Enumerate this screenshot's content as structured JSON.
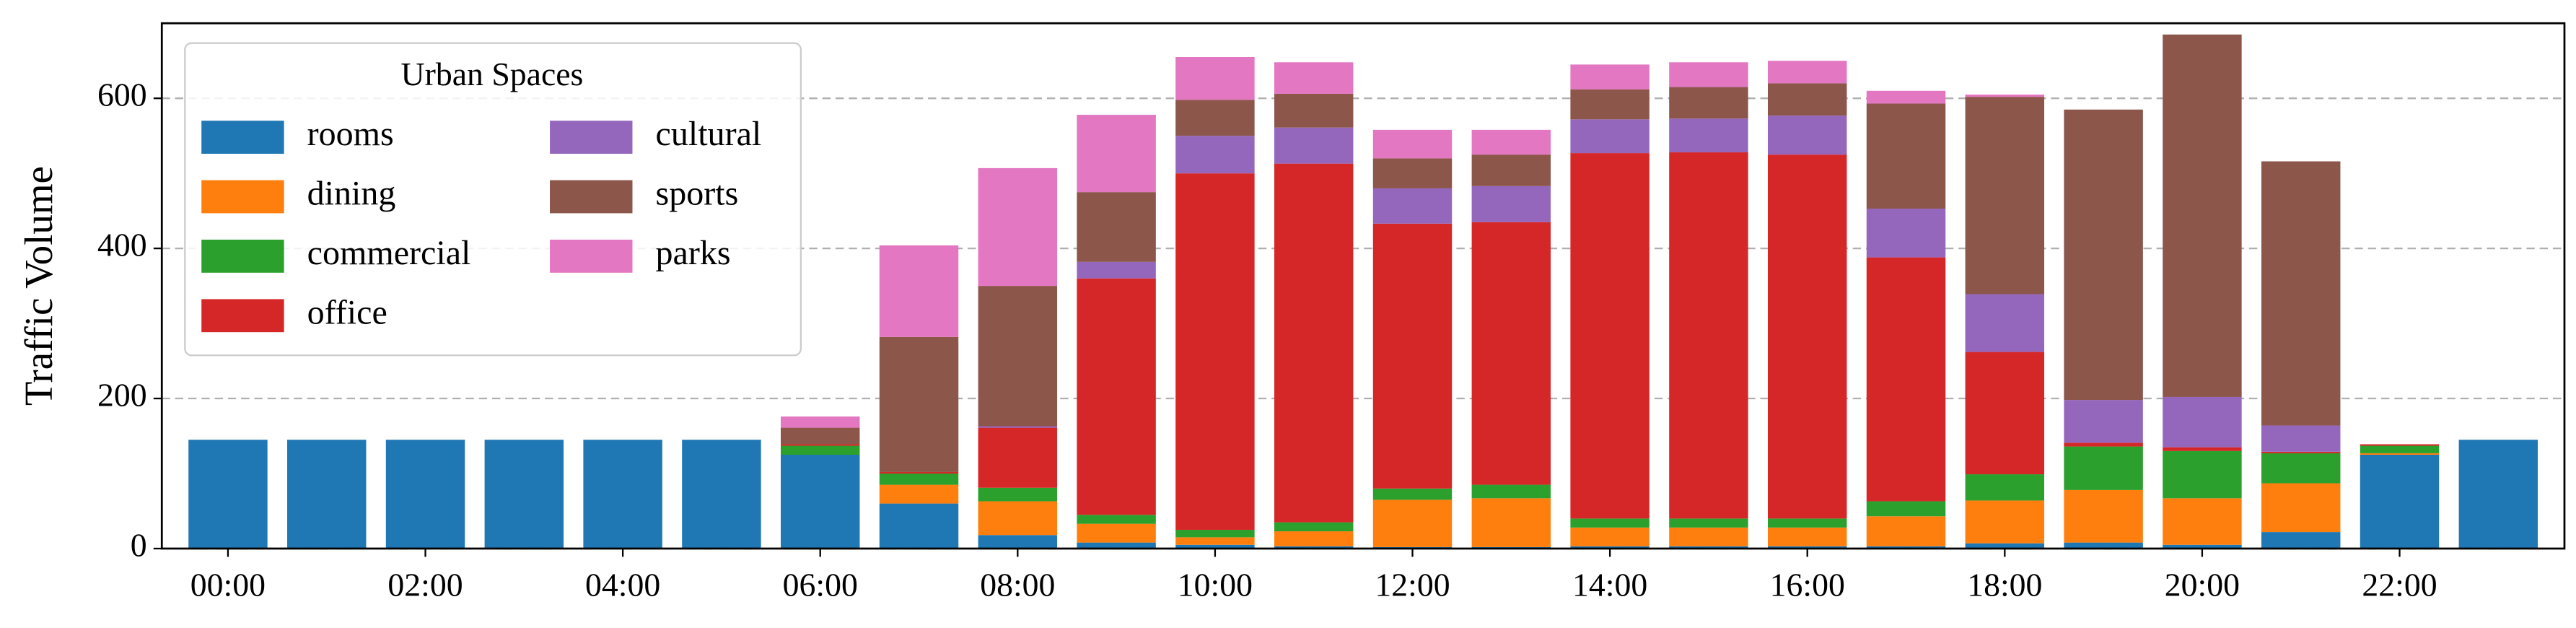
{
  "chart_data": {
    "type": "stacked_bar",
    "ylabel": "Traffic Volume",
    "categories": [
      "00:00",
      null,
      "02:00",
      null,
      "04:00",
      null,
      "06:00",
      null,
      "08:00",
      null,
      "10:00",
      null,
      "12:00",
      null,
      "14:00",
      null,
      "16:00",
      null,
      "18:00",
      null,
      "20:00",
      null,
      "22:00",
      null
    ],
    "series": [
      {
        "name": "rooms",
        "color": "#1f77b4",
        "values": [
          145,
          145,
          145,
          145,
          145,
          145,
          125,
          60,
          18,
          8,
          5,
          3,
          2,
          2,
          3,
          3,
          3,
          3,
          7,
          8,
          5,
          22,
          125,
          145
        ]
      },
      {
        "name": "dining",
        "color": "#ff7f0e",
        "values": [
          0,
          0,
          0,
          0,
          0,
          0,
          0,
          25,
          45,
          25,
          10,
          20,
          63,
          65,
          25,
          25,
          25,
          40,
          57,
          70,
          62,
          65,
          2,
          0
        ]
      },
      {
        "name": "commercial",
        "color": "#2ca02c",
        "values": [
          0,
          0,
          0,
          0,
          0,
          0,
          12,
          15,
          18,
          12,
          10,
          12,
          15,
          18,
          12,
          12,
          12,
          20,
          35,
          58,
          63,
          40,
          10,
          0
        ]
      },
      {
        "name": "office",
        "color": "#d62728",
        "values": [
          0,
          0,
          0,
          0,
          0,
          0,
          2,
          2,
          80,
          315,
          475,
          478,
          353,
          350,
          487,
          488,
          485,
          325,
          163,
          5,
          5,
          2,
          2,
          0
        ]
      },
      {
        "name": "cultural",
        "color": "#9467bd",
        "values": [
          0,
          0,
          0,
          0,
          0,
          0,
          0,
          0,
          2,
          22,
          50,
          48,
          47,
          48,
          45,
          45,
          52,
          65,
          77,
          57,
          67,
          35,
          0,
          0
        ]
      },
      {
        "name": "sports",
        "color": "#8c564b",
        "values": [
          0,
          0,
          0,
          0,
          0,
          0,
          22,
          180,
          187,
          93,
          48,
          45,
          40,
          42,
          40,
          42,
          43,
          140,
          263,
          387,
          483,
          352,
          0,
          0
        ]
      },
      {
        "name": "parks",
        "color": "#e377c2",
        "values": [
          0,
          0,
          0,
          0,
          0,
          0,
          15,
          122,
          157,
          103,
          57,
          42,
          38,
          33,
          33,
          33,
          30,
          17,
          3,
          0,
          0,
          0,
          0,
          0
        ]
      }
    ],
    "legend_title": "Urban Spaces",
    "legend": "upper left",
    "ylim": [
      0,
      700
    ],
    "yticks": [
      0,
      200,
      400,
      600
    ],
    "grid": true
  }
}
